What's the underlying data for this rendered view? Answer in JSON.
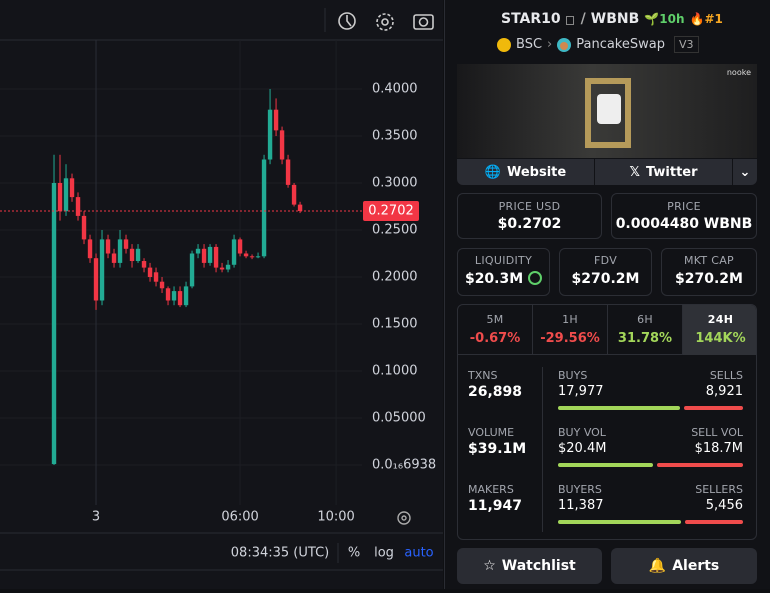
{
  "chart": {
    "type": "candlestick",
    "candles": {
      "x": [
        -1.75,
        -1.5,
        -1.25,
        -1,
        -0.75,
        -0.5,
        -0.25,
        0,
        0.25,
        0.5,
        0.75,
        1,
        1.25,
        1.5,
        1.75,
        2,
        2.25,
        2.5,
        2.75,
        3,
        3.25,
        3.5,
        3.75,
        4,
        4.25,
        4.5,
        4.75,
        5,
        5.25,
        5.5,
        5.75,
        6,
        6.25,
        6.5,
        6.75,
        7,
        7.25,
        7.5,
        7.75,
        8,
        8.25,
        8.5
      ],
      "open": [
        0.001,
        0.3,
        0.27,
        0.305,
        0.285,
        0.265,
        0.24,
        0.22,
        0.175,
        0.24,
        0.225,
        0.215,
        0.24,
        0.23,
        0.217,
        0.217,
        0.21,
        0.205,
        0.195,
        0.188,
        0.175,
        0.185,
        0.17,
        0.19,
        0.225,
        0.23,
        0.215,
        0.232,
        0.21,
        0.208,
        0.213,
        0.24,
        0.225,
        0.222,
        0.221,
        0.222,
        0.325,
        0.378,
        0.356,
        0.325,
        0.298,
        0.277
      ],
      "high": [
        0.33,
        0.33,
        0.32,
        0.31,
        0.29,
        0.27,
        0.245,
        0.225,
        0.25,
        0.245,
        0.23,
        0.25,
        0.245,
        0.235,
        0.235,
        0.22,
        0.215,
        0.21,
        0.2,
        0.19,
        0.19,
        0.19,
        0.195,
        0.228,
        0.235,
        0.235,
        0.235,
        0.235,
        0.215,
        0.218,
        0.245,
        0.242,
        0.228,
        0.224,
        0.226,
        0.33,
        0.4,
        0.39,
        0.36,
        0.33,
        0.3,
        0.28
      ],
      "low": [
        0,
        0.26,
        0.265,
        0.28,
        0.26,
        0.235,
        0.215,
        0.165,
        0.17,
        0.22,
        0.21,
        0.21,
        0.225,
        0.21,
        0.215,
        0.205,
        0.195,
        0.19,
        0.183,
        0.17,
        0.17,
        0.168,
        0.168,
        0.188,
        0.22,
        0.21,
        0.212,
        0.205,
        0.205,
        0.205,
        0.21,
        0.222,
        0.22,
        0.219,
        0.22,
        0.22,
        0.32,
        0.35,
        0.32,
        0.295,
        0.275,
        0.268
      ],
      "close": [
        0.3,
        0.27,
        0.305,
        0.285,
        0.265,
        0.24,
        0.22,
        0.175,
        0.24,
        0.225,
        0.215,
        0.24,
        0.23,
        0.217,
        0.23,
        0.21,
        0.2,
        0.195,
        0.188,
        0.175,
        0.185,
        0.17,
        0.19,
        0.225,
        0.23,
        0.215,
        0.232,
        0.21,
        0.208,
        0.213,
        0.24,
        0.225,
        0.222,
        0.221,
        0.222,
        0.325,
        0.378,
        0.356,
        0.325,
        0.298,
        0.277,
        0.2702
      ]
    },
    "up_color": "#22ab94",
    "down_color": "#f23645",
    "ylim": [
      -0.04,
      0.45
    ],
    "yticks": [
      {
        "value": 6.938e-18,
        "label": "0.0₁₆6938"
      },
      {
        "value": 0.05,
        "label": "0.05000"
      },
      {
        "value": 0.1,
        "label": "0.1000"
      },
      {
        "value": 0.15,
        "label": "0.1500"
      },
      {
        "value": 0.2,
        "label": "0.2000"
      },
      {
        "value": 0.25,
        "label": "0.2500"
      },
      {
        "value": 0.3,
        "label": "0.3000"
      },
      {
        "value": 0.35,
        "label": "0.3500"
      },
      {
        "value": 0.4,
        "label": "0.4000"
      }
    ],
    "xlim": [
      -4,
      11.08
    ],
    "xticks": [
      {
        "value": 0,
        "label": "3"
      },
      {
        "value": 6,
        "label": "06:00"
      },
      {
        "value": 10,
        "label": "10:00"
      }
    ],
    "last_price": {
      "value": 0.2702,
      "label": "0.2702"
    },
    "clock": "08:34:35 (UTC)",
    "percent": "%",
    "log": "log",
    "auto": "auto"
  },
  "header": {
    "pair": "STAR10",
    "quote": "WBNB",
    "age": "10h",
    "rank": "#1",
    "chain": "BSC",
    "dex": "PancakeSwap",
    "version": "V3"
  },
  "banner": {
    "tag": "nooke"
  },
  "links": {
    "website": "Website",
    "twitter": "Twitter"
  },
  "price_usd": {
    "label": "PRICE USD",
    "value": "$0.2702"
  },
  "price": {
    "label": "PRICE",
    "value": "0.0004480 WBNB"
  },
  "liquidity": {
    "label": "LIQUIDITY",
    "value": "$20.3M"
  },
  "fdv": {
    "label": "FDV",
    "value": "$270.2M"
  },
  "mkt_cap": {
    "label": "MKT CAP",
    "value": "$270.2M"
  },
  "periods": [
    {
      "label": "5M",
      "change": "-0.67%"
    },
    {
      "label": "1H",
      "change": "-29.56%"
    },
    {
      "label": "6H",
      "change": "31.78%"
    },
    {
      "label": "24H",
      "change": "144K%"
    }
  ],
  "stats": {
    "txns": {
      "label": "TXNS",
      "value": "26,898"
    },
    "buys": {
      "label": "BUYS",
      "value": "17,977"
    },
    "sells": {
      "label": "SELLS",
      "value": "8,921"
    },
    "volume": {
      "label": "VOLUME",
      "value": "$39.1M"
    },
    "buy_vol": {
      "label": "BUY VOL",
      "value": "$20.4M"
    },
    "sell_vol": {
      "label": "SELL VOL",
      "value": "$18.7M"
    },
    "makers": {
      "label": "MAKERS",
      "value": "11,947"
    },
    "buyers": {
      "label": "BUYERS",
      "value": "11,387"
    },
    "sellers": {
      "label": "SELLERS",
      "value": "5,456"
    }
  },
  "actions": {
    "watchlist": "Watchlist",
    "alerts": "Alerts"
  }
}
